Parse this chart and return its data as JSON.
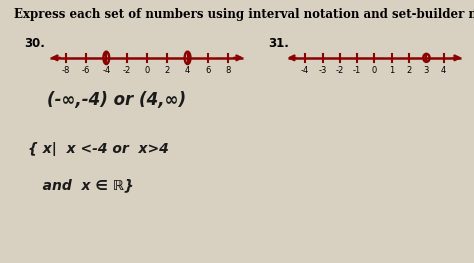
{
  "title": "Express each set of numbers using interval notation and set-builder notation.",
  "title_fontsize": 8.5,
  "bg_color": "#d8d0c0",
  "number_line_color": "#8B0000",
  "number_line_lw": 1.8,
  "q30_label": "30.",
  "q31_label": "31.",
  "q30_ticks": [
    -8,
    -6,
    -4,
    -2,
    0,
    2,
    4,
    6,
    8
  ],
  "q30_open_circles": [
    -4,
    4
  ],
  "q30_xlim": [
    -9.8,
    9.8
  ],
  "q31_ticks": [
    -4,
    -3,
    -2,
    -1,
    0,
    1,
    2,
    3,
    4
  ],
  "q31_open_circles": [
    3
  ],
  "q31_xlim": [
    -5.2,
    5.2
  ],
  "interval_text": "(-∞,-4) or (4,∞)",
  "set_builder_line1": "{ x|  x <-4 or  x>4",
  "set_builder_line2": "   and  x ∈ ℝ}",
  "handwriting_color": "#1a1a1a",
  "tick_fontsize": 6.0,
  "label_fontsize": 8.5,
  "interval_fontsize": 12,
  "setbuilder_fontsize": 10
}
